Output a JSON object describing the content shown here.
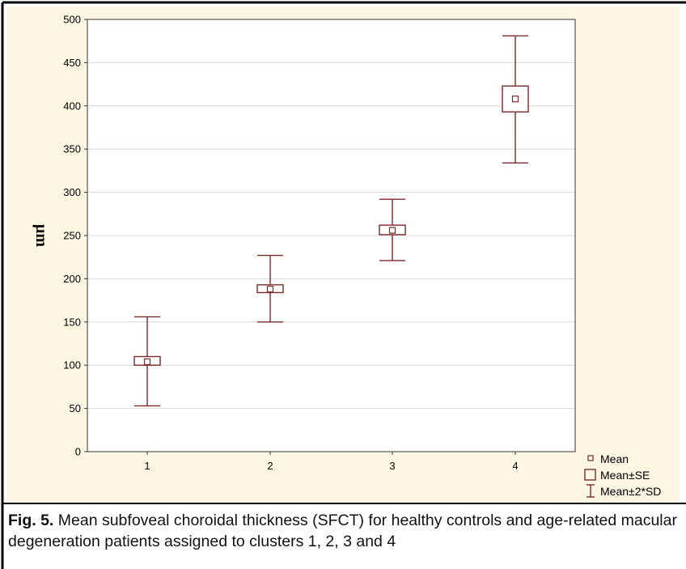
{
  "chart_data": {
    "type": "box",
    "title": "",
    "xlabel": "",
    "ylabel": "µm",
    "ylim": [
      0,
      500
    ],
    "yticks": [
      "0",
      "50",
      "100",
      "150",
      "200",
      "250",
      "300",
      "350",
      "400",
      "450",
      "500"
    ],
    "categories": [
      "1",
      "2",
      "3",
      "4"
    ],
    "series": [
      {
        "name": "Mean",
        "values": [
          104,
          188,
          256,
          408
        ]
      },
      {
        "name": "Mean±SE",
        "low": [
          100,
          184,
          251,
          393
        ],
        "high": [
          110,
          193,
          262,
          423
        ]
      },
      {
        "name": "Mean±2*SD",
        "low": [
          53,
          150,
          221,
          334
        ],
        "high": [
          156,
          227,
          292,
          481
        ]
      }
    ],
    "grid": true,
    "legend_position": "bottom-right",
    "colors": {
      "plot_background": "#ffffff",
      "outer_background": "#fdf6e3",
      "marks": "#7b2b2b",
      "grid": "#d8d8d8"
    }
  },
  "caption": {
    "label": "Fig. 5.",
    "text": " Mean subfoveal choroidal thickness (SFCT) for healthy controls and age-related macular degeneration patients assigned to clusters 1, 2, 3 and 4"
  }
}
